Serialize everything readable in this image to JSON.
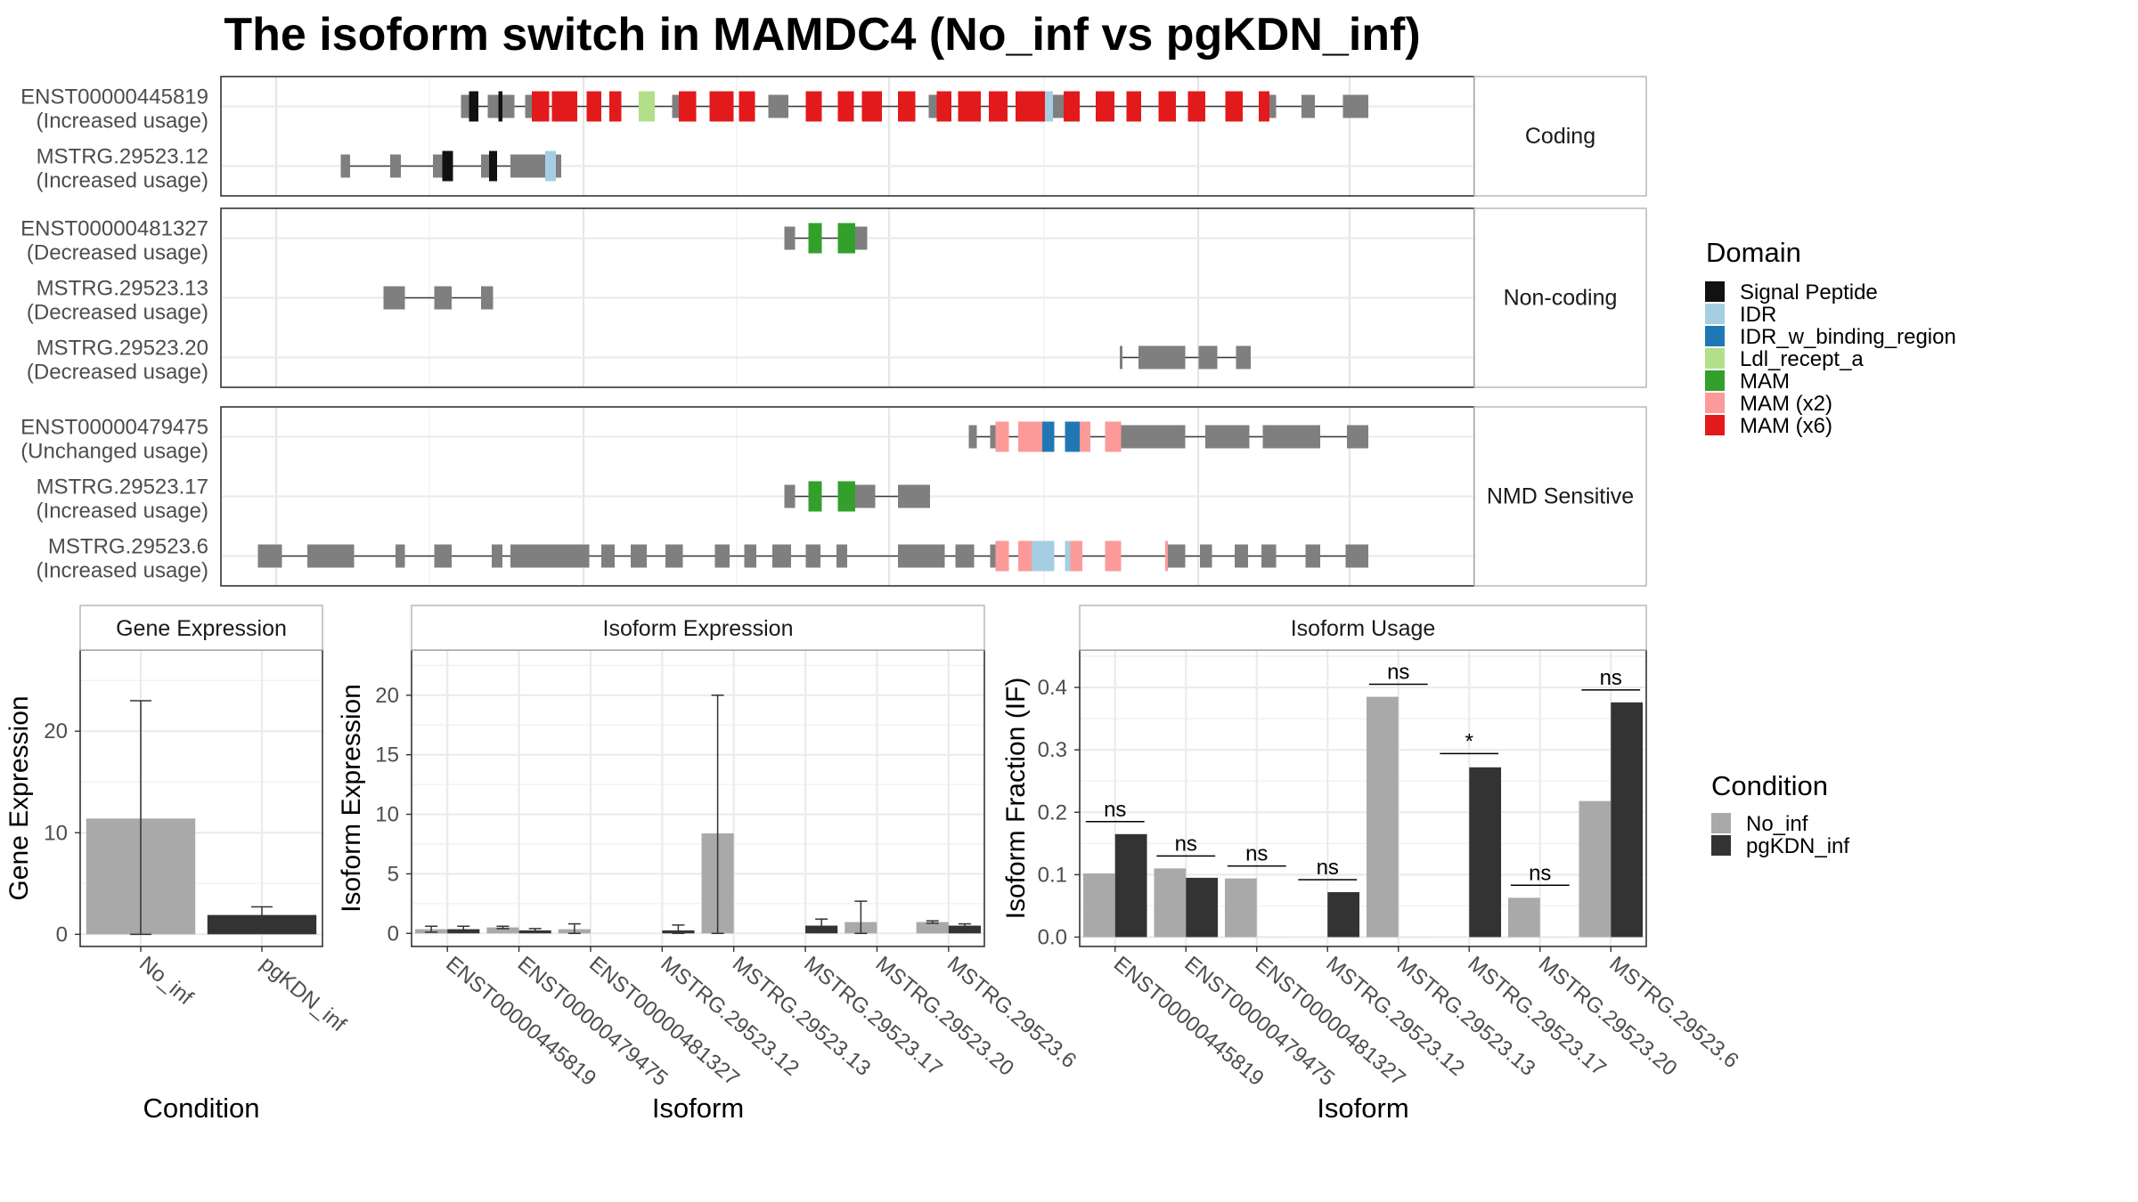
{
  "title": "The isoform switch in MAMDC4 (No_inf vs pgKDN_inf)",
  "colors": {
    "exon": "#7f7f7f",
    "No_inf": "#a9a9a9",
    "pgKDN_inf": "#333333",
    "Signal Peptide": "#111111",
    "IDR": "#a6cee3",
    "IDR_w_binding_region": "#1f78b4",
    "Ldl_recept_a": "#b2df8a",
    "MAM": "#33a02c",
    "MAM (x2)": "#fb9a99",
    "MAM (x6)": "#e31a1c"
  },
  "legends": {
    "domain": {
      "title": "Domain",
      "items": [
        "Signal Peptide",
        "IDR",
        "IDR_w_binding_region",
        "Ldl_recept_a",
        "MAM",
        "MAM (x2)",
        "MAM (x6)"
      ]
    },
    "condition": {
      "title": "Condition",
      "items": [
        "No_inf",
        "pgKDN_inf"
      ]
    }
  },
  "chart_data": [
    {
      "type": "gene-structure",
      "facets": [
        {
          "label": "Coding",
          "tracks": [
            {
              "name": "ENST00000445819",
              "usage": "(Increased usage)",
              "line": [
                345,
                1010
              ],
              "exons": [
                [
                  345,
                  351,
                  "exon"
                ],
                [
                  351,
                  358,
                  "Signal Peptide"
                ],
                [
                  365,
                  373,
                  "exon"
                ],
                [
                  373,
                  376,
                  "Signal Peptide"
                ],
                [
                  376,
                  385,
                  "exon"
                ],
                [
                  393,
                  398,
                  "exon"
                ],
                [
                  398,
                  411,
                  "MAM (x6)"
                ],
                [
                  413,
                  432,
                  "MAM (x6)"
                ],
                [
                  439,
                  450,
                  "MAM (x6)"
                ],
                [
                  456,
                  465,
                  "MAM (x6)"
                ],
                [
                  478,
                  490,
                  "Ldl_recept_a"
                ],
                [
                  503,
                  508,
                  "exon"
                ],
                [
                  508,
                  521,
                  "MAM (x6)"
                ],
                [
                  531,
                  549,
                  "MAM (x6)"
                ],
                [
                  553,
                  565,
                  "MAM (x6)"
                ],
                [
                  575,
                  590,
                  "exon"
                ],
                [
                  603,
                  615,
                  "MAM (x6)"
                ],
                [
                  627,
                  639,
                  "MAM (x6)"
                ],
                [
                  645,
                  660,
                  "MAM (x6)"
                ],
                [
                  672,
                  685,
                  "MAM (x6)"
                ],
                [
                  695,
                  701,
                  "exon"
                ],
                [
                  701,
                  712,
                  "MAM (x6)"
                ],
                [
                  717,
                  734,
                  "MAM (x6)"
                ],
                [
                  740,
                  754,
                  "MAM (x6)"
                ],
                [
                  760,
                  782,
                  "MAM (x6)"
                ],
                [
                  782,
                  788,
                  "IDR"
                ],
                [
                  788,
                  796,
                  "exon"
                ],
                [
                  796,
                  808,
                  "MAM (x6)"
                ],
                [
                  820,
                  834,
                  "MAM (x6)"
                ],
                [
                  843,
                  854,
                  "MAM (x6)"
                ],
                [
                  867,
                  880,
                  "MAM (x6)"
                ],
                [
                  889,
                  902,
                  "MAM (x6)"
                ],
                [
                  917,
                  930,
                  "MAM (x6)"
                ],
                [
                  942,
                  950,
                  "MAM (x6)"
                ],
                [
                  950,
                  955,
                  "exon"
                ],
                [
                  974,
                  984,
                  "exon"
                ],
                [
                  1005,
                  1010,
                  "exon"
                ],
                [
                  1010,
                  1024,
                  "exon"
                ]
              ]
            },
            {
              "name": "MSTRG.29523.12",
              "usage": "(Increased usage)",
              "line": [
                255,
                420
              ],
              "exons": [
                [
                  255,
                  262,
                  "exon"
                ],
                [
                  292,
                  300,
                  "exon"
                ],
                [
                  324,
                  331,
                  "exon"
                ],
                [
                  331,
                  339,
                  "Signal Peptide"
                ],
                [
                  360,
                  366,
                  "exon"
                ],
                [
                  366,
                  372,
                  "Signal Peptide"
                ],
                [
                  382,
                  408,
                  "exon"
                ],
                [
                  408,
                  416,
                  "IDR"
                ],
                [
                  416,
                  420,
                  "exon"
                ]
              ]
            }
          ]
        },
        {
          "label": "Non-coding",
          "tracks": [
            {
              "name": "ENST00000481327",
              "usage": "(Decreased usage)",
              "line": [
                587,
                649
              ],
              "exons": [
                [
                  587,
                  595,
                  "exon"
                ],
                [
                  605,
                  615,
                  "MAM"
                ],
                [
                  627,
                  640,
                  "MAM"
                ],
                [
                  640,
                  649,
                  "exon"
                ]
              ]
            },
            {
              "name": "MSTRG.29523.13",
              "usage": "(Decreased usage)",
              "line": [
                287,
                369
              ],
              "exons": [
                [
                  287,
                  303,
                  "exon"
                ],
                [
                  325,
                  338,
                  "exon"
                ],
                [
                  360,
                  369,
                  "exon"
                ]
              ]
            },
            {
              "name": "MSTRG.29523.20",
              "usage": "(Decreased usage)",
              "line": [
                838,
                936
              ],
              "exons": [
                [
                  838,
                  840,
                  "exon"
                ],
                [
                  852,
                  887,
                  "exon"
                ],
                [
                  897,
                  911,
                  "exon"
                ],
                [
                  925,
                  936,
                  "exon"
                ]
              ]
            }
          ]
        },
        {
          "label": "NMD Sensitive",
          "tracks": [
            {
              "name": "ENST00000479475",
              "usage": "(Unchanged usage)",
              "line": [
                725,
                1024
              ],
              "exons": [
                [
                  725,
                  731,
                  "exon"
                ],
                [
                  741,
                  745,
                  "exon"
                ],
                [
                  745,
                  755,
                  "MAM (x2)"
                ],
                [
                  762,
                  772,
                  "MAM (x2)"
                ],
                [
                  772,
                  780,
                  "MAM (x2)"
                ],
                [
                  780,
                  789,
                  "IDR_w_binding_region"
                ],
                [
                  797,
                  808,
                  "IDR_w_binding_region"
                ],
                [
                  808,
                  816,
                  "MAM (x2)"
                ],
                [
                  827,
                  839,
                  "MAM (x2)"
                ],
                [
                  839,
                  848,
                  "exon"
                ],
                [
                  848,
                  887,
                  "exon"
                ],
                [
                  902,
                  935,
                  "exon"
                ],
                [
                  945,
                  988,
                  "exon"
                ],
                [
                  1008,
                  1024,
                  "exon"
                ]
              ]
            },
            {
              "name": "MSTRG.29523.17",
              "usage": "(Increased usage)",
              "line": [
                587,
                696
              ],
              "exons": [
                [
                  587,
                  595,
                  "exon"
                ],
                [
                  605,
                  615,
                  "MAM"
                ],
                [
                  627,
                  640,
                  "MAM"
                ],
                [
                  640,
                  655,
                  "exon"
                ],
                [
                  672,
                  696,
                  "exon"
                ]
              ]
            },
            {
              "name": "MSTRG.29523.6",
              "usage": "(Increased usage)",
              "line": [
                193,
                1024
              ],
              "exons": [
                [
                  193,
                  211,
                  "exon"
                ],
                [
                  230,
                  265,
                  "exon"
                ],
                [
                  296,
                  303,
                  "exon"
                ],
                [
                  325,
                  338,
                  "exon"
                ],
                [
                  368,
                  376,
                  "exon"
                ],
                [
                  382,
                  441,
                  "exon"
                ],
                [
                  450,
                  460,
                  "exon"
                ],
                [
                  472,
                  484,
                  "exon"
                ],
                [
                  498,
                  511,
                  "exon"
                ],
                [
                  535,
                  546,
                  "exon"
                ],
                [
                  557,
                  566,
                  "exon"
                ],
                [
                  578,
                  592,
                  "exon"
                ],
                [
                  603,
                  614,
                  "exon"
                ],
                [
                  626,
                  634,
                  "exon"
                ],
                [
                  672,
                  707,
                  "exon"
                ],
                [
                  715,
                  729,
                  "exon"
                ],
                [
                  741,
                  745,
                  "exon"
                ],
                [
                  745,
                  755,
                  "MAM (x2)"
                ],
                [
                  762,
                  772,
                  "MAM (x2)"
                ],
                [
                  772,
                  780,
                  "IDR"
                ],
                [
                  780,
                  789,
                  "IDR"
                ],
                [
                  797,
                  801,
                  "IDR"
                ],
                [
                  801,
                  810,
                  "MAM (x2)"
                ],
                [
                  827,
                  839,
                  "MAM (x2)"
                ],
                [
                  872,
                  874,
                  "MAM (x2)"
                ],
                [
                  874,
                  887,
                  "exon"
                ],
                [
                  898,
                  907,
                  "exon"
                ],
                [
                  924,
                  934,
                  "exon"
                ],
                [
                  944,
                  955,
                  "exon"
                ],
                [
                  977,
                  988,
                  "exon"
                ],
                [
                  1007,
                  1024,
                  "exon"
                ]
              ]
            }
          ]
        }
      ]
    },
    {
      "type": "bar",
      "title": "Gene Expression",
      "xlabel": "Condition",
      "ylabel": "Gene Expression",
      "ylim": [
        -1.2,
        28
      ],
      "yticks": [
        0,
        10,
        20
      ],
      "categories": [
        "No_inf",
        "pgKDN_inf"
      ],
      "values": [
        11.4,
        1.9
      ],
      "errors": [
        [
          0,
          23
        ],
        [
          1.1,
          2.7
        ]
      ]
    },
    {
      "type": "bar",
      "title": "Isoform Expression",
      "xlabel": "Isoform",
      "ylabel": "Isoform Expression",
      "ylim": [
        -1.1,
        23.8
      ],
      "yticks": [
        0,
        5,
        10,
        15,
        20
      ],
      "categories": [
        "ENST00000445819",
        "ENST00000479475",
        "ENST00000481327",
        "MSTRG.29523.12",
        "MSTRG.29523.13",
        "MSTRG.29523.17",
        "MSTRG.29523.20",
        "MSTRG.29523.6"
      ],
      "series": [
        {
          "name": "No_inf",
          "values": [
            0.35,
            0.5,
            0.35,
            0.0,
            8.4,
            0.0,
            0.95,
            0.95
          ],
          "errors": [
            [
              0.1,
              0.6
            ],
            [
              0.4,
              0.6
            ],
            [
              0.0,
              0.8
            ],
            [
              0.0,
              0.0
            ],
            [
              0.0,
              20.0
            ],
            [
              0.0,
              0.0
            ],
            [
              0.0,
              2.7
            ],
            [
              0.85,
              1.05
            ]
          ]
        },
        {
          "name": "pgKDN_inf",
          "values": [
            0.35,
            0.25,
            0.0,
            0.25,
            0.0,
            0.65,
            0.0,
            0.65
          ],
          "errors": [
            [
              0.1,
              0.6
            ],
            [
              0.1,
              0.4
            ],
            [
              0.0,
              0.0
            ],
            [
              0.0,
              0.7
            ],
            [
              0.0,
              0.0
            ],
            [
              0.3,
              1.2
            ],
            [
              0.0,
              0.0
            ],
            [
              0.5,
              0.8
            ]
          ]
        }
      ]
    },
    {
      "type": "bar",
      "title": "Isoform Usage",
      "xlabel": "Isoform",
      "ylabel": "Isoform Fraction (IF)",
      "ylim": [
        -0.015,
        0.46
      ],
      "yticks": [
        0.0,
        0.1,
        0.2,
        0.3,
        0.4
      ],
      "ytick_labels": [
        "0.0",
        "0.1",
        "0.2",
        "0.3",
        "0.4"
      ],
      "categories": [
        "ENST00000445819",
        "ENST00000479475",
        "ENST00000481327",
        "MSTRG.29523.12",
        "MSTRG.29523.13",
        "MSTRG.29523.17",
        "MSTRG.29523.20",
        "MSTRG.29523.6"
      ],
      "series": [
        {
          "name": "No_inf",
          "values": [
            0.102,
            0.11,
            0.094,
            0.0,
            0.385,
            0.0,
            0.063,
            0.218
          ]
        },
        {
          "name": "pgKDN_inf",
          "values": [
            0.165,
            0.095,
            0.0,
            0.072,
            0.0,
            0.272,
            0.0,
            0.376
          ]
        }
      ],
      "annotations": [
        {
          "label": "ns",
          "y": 0.185
        },
        {
          "label": "ns",
          "y": 0.13
        },
        {
          "label": "ns",
          "y": 0.114
        },
        {
          "label": "ns",
          "y": 0.092
        },
        {
          "label": "ns",
          "y": 0.405
        },
        {
          "label": "*",
          "y": 0.294
        },
        {
          "label": "ns",
          "y": 0.083
        },
        {
          "label": "ns",
          "y": 0.396
        }
      ]
    }
  ]
}
